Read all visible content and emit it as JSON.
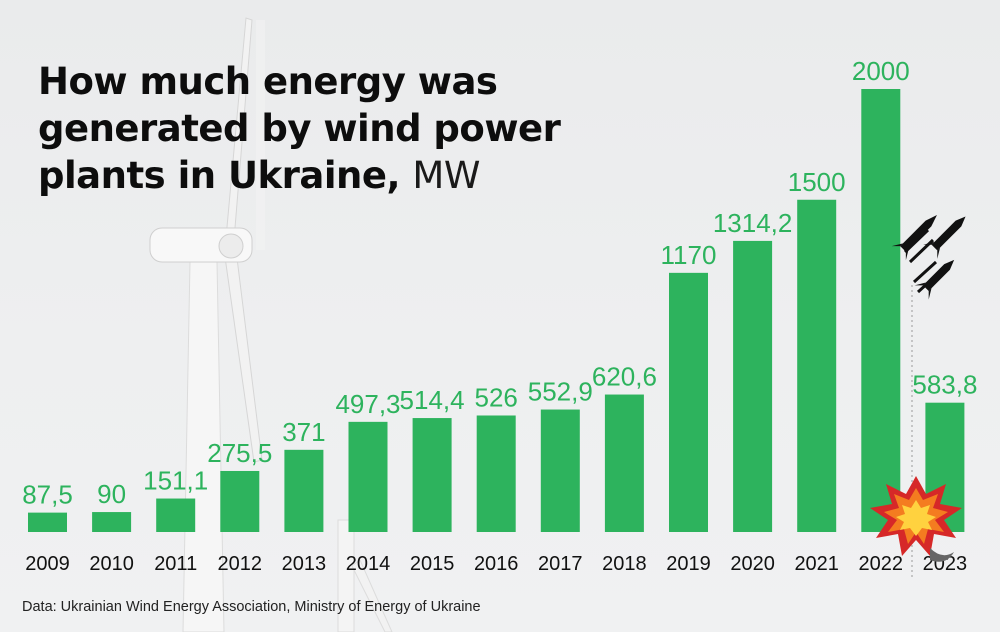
{
  "title": "How much energy was generated by wind power plants in Ukraine,",
  "unit": "MW",
  "source": "Data: Ukrainian Wind Energy Association, Ministry of Energy of Ukraine",
  "colors": {
    "bar": "#2db35d",
    "label": "#2db35d",
    "text": "#111111"
  },
  "icons": [
    "wind-turbine-icon",
    "missiles-icon",
    "explosion-icon"
  ],
  "chart_data": {
    "type": "bar",
    "title": "How much energy was generated by wind power plants in Ukraine, MW",
    "categories": [
      "2009",
      "2010",
      "2011",
      "2012",
      "2013",
      "2014",
      "2015",
      "2016",
      "2017",
      "2018",
      "2019",
      "2020",
      "2021",
      "2022",
      "2023"
    ],
    "values": [
      87.5,
      90,
      151.1,
      275.5,
      371,
      497.3,
      514.4,
      526,
      552.9,
      620.6,
      1170,
      1314.2,
      1500,
      2000,
      583.8
    ],
    "value_labels": [
      "87,5",
      "90",
      "151,1",
      "275,5",
      "371",
      "497,3",
      "514,4",
      "526",
      "552,9",
      "620,6",
      "1170",
      "1314,2",
      "1500",
      "2000",
      "583,8"
    ],
    "ylim": [
      0,
      2000
    ],
    "grid": false,
    "xlabel": "",
    "ylabel": ""
  }
}
